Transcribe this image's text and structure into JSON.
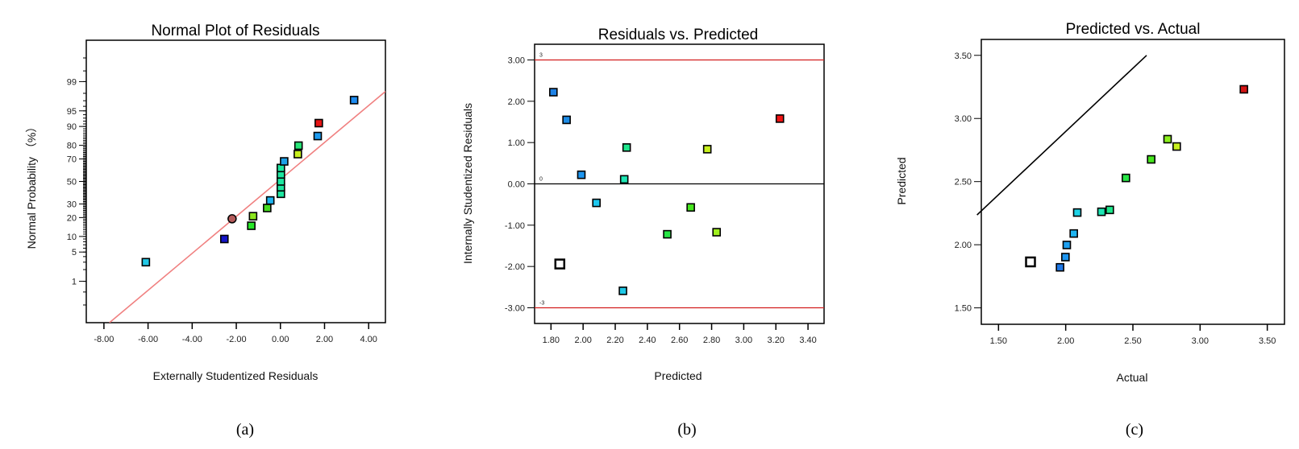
{
  "chart_data": [
    {
      "type": "scatter",
      "title": "Normal Plot of Residuals",
      "xlabel": "Externally Studentized Residuals",
      "ylabel": "Normal Probability  （%）",
      "caption": "(a)",
      "y_scale": "normal-probability",
      "xlim": [
        -8.8,
        4.76
      ],
      "ylim_percent": [
        0.05,
        99.95
      ],
      "x_ticks": [
        -8,
        -6,
        -4,
        -2,
        0,
        2,
        4
      ],
      "x_tick_labels": [
        "-8.00",
        "-6.00",
        "-4.00",
        "-2.00",
        "0.00",
        "2.00",
        "4.00"
      ],
      "y_ticks": [
        1,
        5,
        10,
        20,
        30,
        50,
        70,
        80,
        90,
        95,
        99
      ],
      "y_tick_labels": [
        "1",
        "5",
        "10",
        "20",
        "30",
        "50",
        "70",
        "80",
        "90",
        "95",
        "99"
      ],
      "fit_line": {
        "x": [
          -7.75,
          4.76
        ],
        "percent": [
          0.05,
          98.2
        ],
        "color": "#f08080"
      },
      "points": [
        {
          "x": -6.1,
          "p": 3.0,
          "color": "#22c8e6",
          "shape": "square"
        },
        {
          "x": -2.54,
          "p": 9.0,
          "color": "#1414c8",
          "shape": "square"
        },
        {
          "x": -2.19,
          "p": 19.2,
          "color": "#b45a5a",
          "shape": "circle"
        },
        {
          "x": -1.32,
          "p": 15.1,
          "color": "#28e628",
          "shape": "square"
        },
        {
          "x": -1.24,
          "p": 20.9,
          "color": "#8ce61e",
          "shape": "square"
        },
        {
          "x": -0.6,
          "p": 26.8,
          "color": "#46dc1e",
          "shape": "square"
        },
        {
          "x": -0.46,
          "p": 32.9,
          "color": "#1eb4f0",
          "shape": "square"
        },
        {
          "x": 0.02,
          "p": 38.7,
          "color": "#1ee6a0",
          "shape": "square"
        },
        {
          "x": 0.02,
          "p": 44.6,
          "color": "#1ee6a0",
          "shape": "square"
        },
        {
          "x": 0.02,
          "p": 50.0,
          "color": "#1ee6a0",
          "shape": "square"
        },
        {
          "x": 0.02,
          "p": 56.5,
          "color": "#1ee6a0",
          "shape": "square"
        },
        {
          "x": 0.02,
          "p": 62.3,
          "color": "#1ee6a0",
          "shape": "square"
        },
        {
          "x": 0.17,
          "p": 68.0,
          "color": "#1ea0e6",
          "shape": "square"
        },
        {
          "x": 0.79,
          "p": 73.8,
          "color": "#c8f01e",
          "shape": "square"
        },
        {
          "x": 0.82,
          "p": 79.8,
          "color": "#28e678",
          "shape": "square"
        },
        {
          "x": 1.69,
          "p": 85.5,
          "color": "#1e9bf0",
          "shape": "square"
        },
        {
          "x": 1.74,
          "p": 91.3,
          "color": "#e61414",
          "shape": "square"
        },
        {
          "x": 3.34,
          "p": 97.1,
          "color": "#1e8cf0",
          "shape": "square"
        }
      ]
    },
    {
      "type": "scatter",
      "title": "Residuals vs. Predicted",
      "xlabel": "Predicted",
      "ylabel": "Internally Studentized Residuals",
      "caption": "(b)",
      "xlim": [
        1.698,
        3.5
      ],
      "ylim": [
        -3.38,
        3.38
      ],
      "x_ticks": [
        1.8,
        2.0,
        2.2,
        2.4,
        2.6,
        2.8,
        3.0,
        3.2,
        3.4
      ],
      "x_tick_labels": [
        "1.80",
        "2.00",
        "2.20",
        "2.40",
        "2.60",
        "2.80",
        "3.00",
        "3.20",
        "3.40"
      ],
      "y_ticks": [
        3,
        2,
        1,
        0,
        -1,
        -2,
        -3
      ],
      "y_tick_labels": [
        "3.00",
        "2.00",
        "1.00",
        "0.00",
        "-1.00",
        "-2.00",
        "-3.00"
      ],
      "ref_lines": [
        {
          "y": 3,
          "label": "3",
          "color": "#d21e1e"
        },
        {
          "y": 0,
          "label": "0",
          "color": "#000000"
        },
        {
          "y": -3,
          "label": "-3",
          "color": "#d21e1e"
        }
      ],
      "points": [
        {
          "x": 1.815,
          "y": 2.22,
          "color": "#1e82e6"
        },
        {
          "x": 1.897,
          "y": 1.55,
          "color": "#1e8ce6"
        },
        {
          "x": 1.989,
          "y": 0.22,
          "color": "#1e96f0"
        },
        {
          "x": 2.083,
          "y": -0.46,
          "color": "#1ec8f0"
        },
        {
          "x": 1.855,
          "y": -1.94,
          "color": "#ffffff",
          "hollow": true
        },
        {
          "x": 2.248,
          "y": -2.59,
          "color": "#1ec8e6"
        },
        {
          "x": 2.256,
          "y": 0.11,
          "color": "#1ee6b4"
        },
        {
          "x": 2.271,
          "y": 0.88,
          "color": "#1ee68c"
        },
        {
          "x": 2.524,
          "y": -1.22,
          "color": "#28e646"
        },
        {
          "x": 2.67,
          "y": -0.57,
          "color": "#46e61e"
        },
        {
          "x": 2.773,
          "y": 0.84,
          "color": "#c8f01e"
        },
        {
          "x": 2.831,
          "y": -1.17,
          "color": "#a0f01e"
        },
        {
          "x": 3.225,
          "y": 1.58,
          "color": "#f01414"
        }
      ]
    },
    {
      "type": "scatter",
      "title": "Predicted vs. Actual",
      "xlabel": "Actual",
      "ylabel": "Predicted",
      "caption": "(c)",
      "xlim": [
        1.372,
        3.628
      ],
      "ylim": [
        1.37,
        3.626
      ],
      "x_ticks": [
        1.5,
        2.0,
        2.5,
        3.0,
        3.5
      ],
      "x_tick_labels": [
        "1.50",
        "2.00",
        "2.50",
        "3.00",
        "3.50"
      ],
      "y_ticks": [
        3.5,
        3.0,
        2.5,
        2.0,
        1.5
      ],
      "y_tick_labels": [
        "3.50",
        "3.00",
        "2.50",
        "2.00",
        "1.50"
      ],
      "fit_line": {
        "x": [
          1.34,
          2.602
        ],
        "y": [
          2.236,
          3.5
        ],
        "color": "#000000"
      },
      "points": [
        {
          "x": 1.738,
          "y": 1.864,
          "color": "#ffffff",
          "hollow": true
        },
        {
          "x": 1.958,
          "y": 1.821,
          "color": "#1e78e6"
        },
        {
          "x": 1.998,
          "y": 1.902,
          "color": "#1e96f0"
        },
        {
          "x": 2.008,
          "y": 1.998,
          "color": "#1ea0f0"
        },
        {
          "x": 2.06,
          "y": 2.089,
          "color": "#1eb4f0"
        },
        {
          "x": 2.086,
          "y": 2.255,
          "color": "#1ed2e6"
        },
        {
          "x": 2.266,
          "y": 2.261,
          "color": "#1ee6b4"
        },
        {
          "x": 2.328,
          "y": 2.276,
          "color": "#1ee68c"
        },
        {
          "x": 2.448,
          "y": 2.529,
          "color": "#28e646"
        },
        {
          "x": 2.636,
          "y": 2.676,
          "color": "#46e61e"
        },
        {
          "x": 2.758,
          "y": 2.836,
          "color": "#8cf01e"
        },
        {
          "x": 2.826,
          "y": 2.778,
          "color": "#c8f01e"
        },
        {
          "x": 3.326,
          "y": 3.231,
          "color": "#d21414"
        }
      ]
    }
  ]
}
